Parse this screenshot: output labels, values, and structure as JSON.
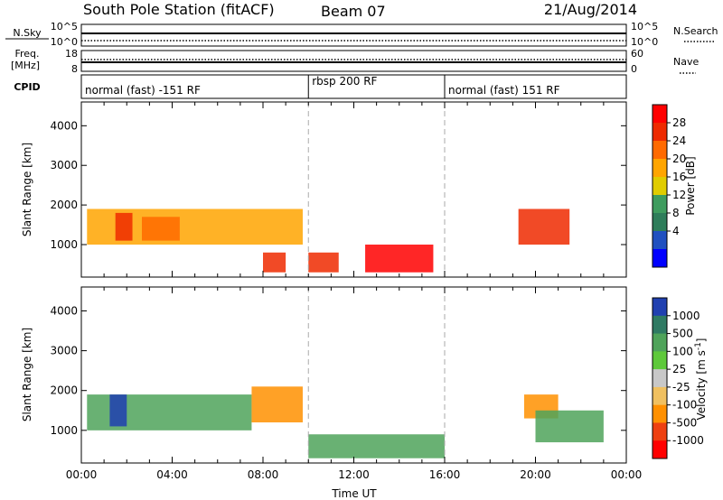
{
  "header": {
    "station": "South Pole Station (fitACF)",
    "beam": "Beam 07",
    "date": "21/Aug/2014"
  },
  "status_panels": {
    "nsky_label": "N.Sky",
    "nsearch_label": "N.Search",
    "noise_ticks_left": [
      "10^5",
      "10^0"
    ],
    "noise_ticks_right": [
      "10^5",
      "10^0"
    ],
    "freq_label": "Freq.",
    "freq_unit": "[MHz]",
    "freq_ticks": [
      "18",
      "8"
    ],
    "nave_label": "Nave",
    "nave_ticks": [
      "60",
      "0"
    ],
    "cpid_label": "CPID"
  },
  "chart_data": [
    {
      "type": "heatmap",
      "quantity": "Power",
      "ylabel": "Slant Range [km]",
      "colorbar_label": "Power [dB]",
      "colorbar_ticks": [
        "28",
        "24",
        "20",
        "16",
        "12",
        "8",
        "4"
      ],
      "colorbar_colors": [
        "#ff0000",
        "#ee2a00",
        "#ff6a00",
        "#ffa500",
        "#e0cc00",
        "#3e9c5e",
        "#2e7d5a",
        "#2050c0",
        "#0000ff"
      ],
      "xlim": [
        "00:00",
        "00:00"
      ],
      "ylim_km": [
        180,
        4600
      ],
      "yticks": [
        1000,
        2000,
        3000,
        4000
      ],
      "mode_boundaries_ut": [
        "10:00",
        "16:00"
      ],
      "regions": [
        {
          "start_ut": "00:15",
          "end_ut": "09:45",
          "range_km": [
            1000,
            1900
          ],
          "level_db": 16
        },
        {
          "start_ut": "01:30",
          "end_ut": "02:15",
          "range_km": [
            1100,
            1800
          ],
          "level_db": 24
        },
        {
          "start_ut": "02:40",
          "end_ut": "04:20",
          "range_km": [
            1100,
            1700
          ],
          "level_db": 22
        },
        {
          "start_ut": "08:00",
          "end_ut": "09:00",
          "range_km": [
            300,
            800
          ],
          "level_db": 26
        },
        {
          "start_ut": "10:00",
          "end_ut": "11:20",
          "range_km": [
            300,
            800
          ],
          "level_db": 24
        },
        {
          "start_ut": "12:30",
          "end_ut": "15:30",
          "range_km": [
            300,
            1000
          ],
          "level_db": 28
        },
        {
          "start_ut": "19:15",
          "end_ut": "21:30",
          "range_km": [
            1000,
            1900
          ],
          "level_db": 26
        }
      ]
    },
    {
      "type": "heatmap",
      "quantity": "Velocity",
      "ylabel": "Slant Range [km]",
      "xlabel": "Time UT",
      "colorbar_label": "Velocity [m s^-1]",
      "colorbar_ticks": [
        "1000",
        "500",
        "100",
        "25",
        "-25",
        "-100",
        "-500",
        "-1000"
      ],
      "colorbar_colors": [
        "#2040b0",
        "#2f7a63",
        "#4fa35a",
        "#5ec93a",
        "#c8c8c8",
        "#f0c060",
        "#ff9000",
        "#ee4010",
        "#ff0000"
      ],
      "xticks": [
        "00:00",
        "04:00",
        "08:00",
        "12:00",
        "16:00",
        "20:00",
        "00:00"
      ],
      "xlim": [
        "00:00",
        "00:00"
      ],
      "ylim_km": [
        180,
        4600
      ],
      "yticks": [
        1000,
        2000,
        3000,
        4000
      ],
      "mode_boundaries_ut": [
        "10:00",
        "16:00"
      ],
      "regions": [
        {
          "start_ut": "00:15",
          "end_ut": "07:30",
          "range_km": [
            1000,
            1900
          ],
          "velocity": 100
        },
        {
          "start_ut": "01:15",
          "end_ut": "02:00",
          "range_km": [
            1100,
            1900
          ],
          "velocity": 1000
        },
        {
          "start_ut": "07:30",
          "end_ut": "09:45",
          "range_km": [
            1200,
            2100
          ],
          "velocity": -500
        },
        {
          "start_ut": "10:00",
          "end_ut": "16:00",
          "range_km": [
            300,
            900
          ],
          "velocity": 200
        },
        {
          "start_ut": "19:30",
          "end_ut": "21:00",
          "range_km": [
            1300,
            1900
          ],
          "velocity": -500
        },
        {
          "start_ut": "20:00",
          "end_ut": "23:00",
          "range_km": [
            700,
            1500
          ],
          "velocity": 300
        }
      ]
    }
  ],
  "cpid_segments": [
    {
      "label": "normal (fast) -151 RF",
      "start_ut": "00:00",
      "end_ut": "10:00"
    },
    {
      "label": "rbsp 200 RF",
      "start_ut": "10:00",
      "end_ut": "16:00"
    },
    {
      "label": "normal (fast) 151 RF",
      "start_ut": "16:00",
      "end_ut": "24:00"
    }
  ]
}
